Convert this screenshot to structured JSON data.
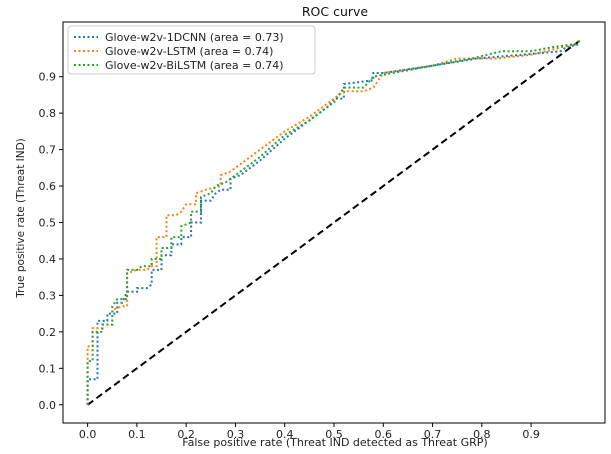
{
  "chart_data": {
    "type": "line",
    "title": "ROC curve",
    "xlabel": "False positive rate (Threat IND detected as Threat GRP)",
    "ylabel": "True positive rate (Threat IND)",
    "xlim": [
      -0.05,
      1.05
    ],
    "ylim": [
      -0.05,
      1.05
    ],
    "x_ticks": [
      0.0,
      0.1,
      0.2,
      0.3,
      0.4,
      0.5,
      0.6,
      0.7,
      0.8,
      0.9
    ],
    "x_tick_labels": [
      "0.0",
      "0.1",
      "0.2",
      "0.3",
      "0.4",
      "0.5",
      "0.6",
      "0.7",
      "0.8",
      "0.9"
    ],
    "y_ticks": [
      0.0,
      0.1,
      0.2,
      0.3,
      0.4,
      0.5,
      0.6,
      0.7,
      0.8,
      0.9
    ],
    "y_tick_labels": [
      "0.0",
      "0.1",
      "0.2",
      "0.3",
      "0.4",
      "0.5",
      "0.6",
      "0.7",
      "0.8",
      "0.9"
    ],
    "grid": false,
    "legend_position": "top-left",
    "series": [
      {
        "name": "Glove-w2v-1DCNN (area = 0.73)",
        "color": "#1f77b4",
        "style": "dotted",
        "points": [
          [
            0,
            0
          ],
          [
            0,
            0.07
          ],
          [
            0.02,
            0.07
          ],
          [
            0.02,
            0.23
          ],
          [
            0.04,
            0.23
          ],
          [
            0.04,
            0.25
          ],
          [
            0.06,
            0.25
          ],
          [
            0.06,
            0.28
          ],
          [
            0.07,
            0.28
          ],
          [
            0.08,
            0.31
          ],
          [
            0.1,
            0.31
          ],
          [
            0.1,
            0.32
          ],
          [
            0.12,
            0.32
          ],
          [
            0.13,
            0.33
          ],
          [
            0.13,
            0.37
          ],
          [
            0.15,
            0.37
          ],
          [
            0.15,
            0.41
          ],
          [
            0.17,
            0.41
          ],
          [
            0.17,
            0.44
          ],
          [
            0.19,
            0.44
          ],
          [
            0.19,
            0.46
          ],
          [
            0.21,
            0.46
          ],
          [
            0.21,
            0.5
          ],
          [
            0.23,
            0.5
          ],
          [
            0.23,
            0.56
          ],
          [
            0.25,
            0.56
          ],
          [
            0.26,
            0.58
          ],
          [
            0.27,
            0.59
          ],
          [
            0.29,
            0.59
          ],
          [
            0.29,
            0.62
          ],
          [
            0.31,
            0.63
          ],
          [
            0.35,
            0.67
          ],
          [
            0.4,
            0.73
          ],
          [
            0.45,
            0.78
          ],
          [
            0.49,
            0.82
          ],
          [
            0.5,
            0.84
          ],
          [
            0.52,
            0.84
          ],
          [
            0.52,
            0.88
          ],
          [
            0.58,
            0.89
          ],
          [
            0.58,
            0.91
          ],
          [
            0.6,
            0.91
          ],
          [
            0.7,
            0.93
          ],
          [
            0.79,
            0.95
          ],
          [
            0.88,
            0.96
          ],
          [
            0.96,
            0.97
          ],
          [
            0.97,
            0.98
          ],
          [
            1.0,
            0.99
          ]
        ]
      },
      {
        "name": "Glove-w2v-LSTM (area = 0.74)",
        "color": "#ff7f0e",
        "style": "dotted",
        "points": [
          [
            0,
            0
          ],
          [
            0,
            0.16
          ],
          [
            0.01,
            0.16
          ],
          [
            0.01,
            0.21
          ],
          [
            0.03,
            0.21
          ],
          [
            0.03,
            0.22
          ],
          [
            0.05,
            0.22
          ],
          [
            0.05,
            0.26
          ],
          [
            0.07,
            0.27
          ],
          [
            0.08,
            0.27
          ],
          [
            0.08,
            0.36
          ],
          [
            0.1,
            0.37
          ],
          [
            0.12,
            0.37
          ],
          [
            0.13,
            0.38
          ],
          [
            0.14,
            0.38
          ],
          [
            0.14,
            0.46
          ],
          [
            0.16,
            0.46
          ],
          [
            0.16,
            0.52
          ],
          [
            0.18,
            0.52
          ],
          [
            0.19,
            0.53
          ],
          [
            0.2,
            0.55
          ],
          [
            0.22,
            0.55
          ],
          [
            0.22,
            0.58
          ],
          [
            0.24,
            0.59
          ],
          [
            0.27,
            0.6
          ],
          [
            0.27,
            0.63
          ],
          [
            0.29,
            0.64
          ],
          [
            0.34,
            0.69
          ],
          [
            0.4,
            0.75
          ],
          [
            0.45,
            0.79
          ],
          [
            0.5,
            0.84
          ],
          [
            0.52,
            0.86
          ],
          [
            0.56,
            0.86
          ],
          [
            0.58,
            0.87
          ],
          [
            0.6,
            0.91
          ],
          [
            0.65,
            0.92
          ],
          [
            0.7,
            0.93
          ],
          [
            0.75,
            0.95
          ],
          [
            0.83,
            0.95
          ],
          [
            0.9,
            0.96
          ],
          [
            0.96,
            0.98
          ],
          [
            0.99,
            0.99
          ],
          [
            1.0,
            1.0
          ]
        ]
      },
      {
        "name": "Glove-w2v-BiLSTM (area = 0.74)",
        "color": "#2ca02c",
        "style": "dotted",
        "points": [
          [
            0,
            0
          ],
          [
            0,
            0.12
          ],
          [
            0.01,
            0.12
          ],
          [
            0.01,
            0.2
          ],
          [
            0.03,
            0.2
          ],
          [
            0.03,
            0.22
          ],
          [
            0.05,
            0.22
          ],
          [
            0.05,
            0.27
          ],
          [
            0.06,
            0.29
          ],
          [
            0.08,
            0.29
          ],
          [
            0.08,
            0.37
          ],
          [
            0.1,
            0.37
          ],
          [
            0.11,
            0.38
          ],
          [
            0.13,
            0.38
          ],
          [
            0.13,
            0.4
          ],
          [
            0.15,
            0.4
          ],
          [
            0.15,
            0.43
          ],
          [
            0.17,
            0.43
          ],
          [
            0.17,
            0.46
          ],
          [
            0.19,
            0.46
          ],
          [
            0.19,
            0.49
          ],
          [
            0.21,
            0.5
          ],
          [
            0.21,
            0.53
          ],
          [
            0.23,
            0.53
          ],
          [
            0.23,
            0.57
          ],
          [
            0.25,
            0.58
          ],
          [
            0.26,
            0.6
          ],
          [
            0.28,
            0.61
          ],
          [
            0.3,
            0.63
          ],
          [
            0.35,
            0.68
          ],
          [
            0.4,
            0.74
          ],
          [
            0.45,
            0.78
          ],
          [
            0.5,
            0.83
          ],
          [
            0.52,
            0.87
          ],
          [
            0.56,
            0.87
          ],
          [
            0.58,
            0.9
          ],
          [
            0.62,
            0.91
          ],
          [
            0.7,
            0.93
          ],
          [
            0.78,
            0.95
          ],
          [
            0.84,
            0.97
          ],
          [
            0.9,
            0.97
          ],
          [
            0.94,
            0.98
          ],
          [
            0.99,
            0.99
          ],
          [
            1.0,
            1.0
          ]
        ]
      }
    ],
    "reference_line": {
      "points": [
        [
          0,
          0
        ],
        [
          1,
          1
        ]
      ],
      "color": "#000000",
      "style": "dashed"
    }
  }
}
